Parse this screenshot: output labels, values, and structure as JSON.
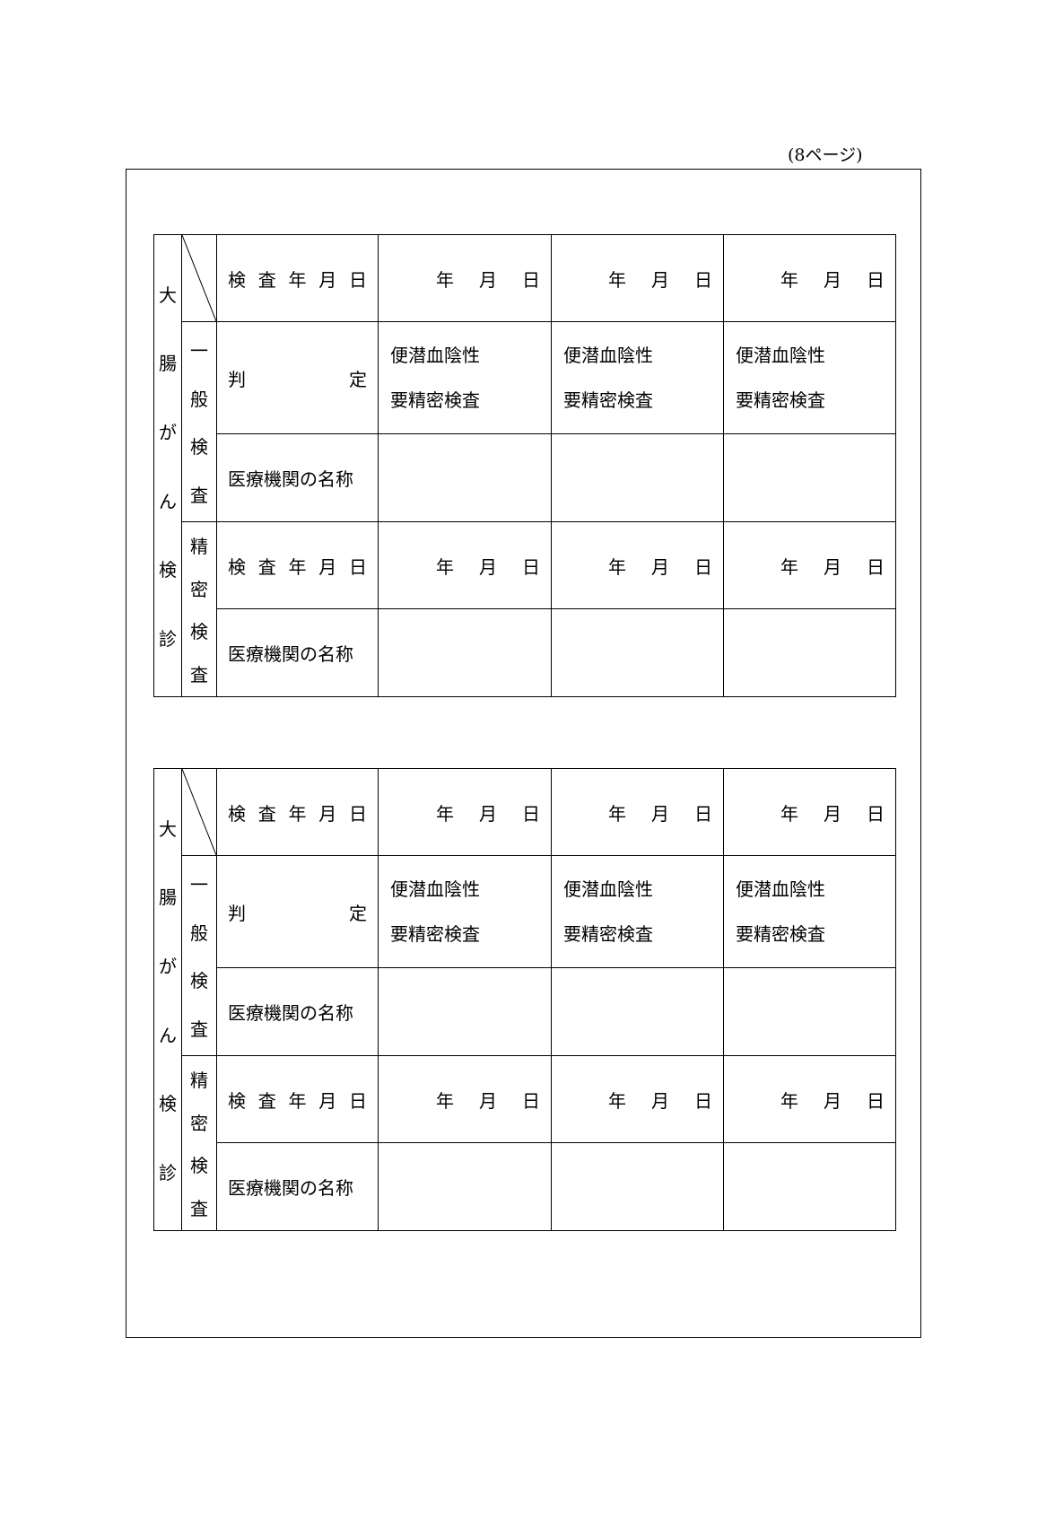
{
  "page_label": "(8ページ)",
  "tables": [
    {
      "side_label": [
        "大",
        "腸",
        "が",
        "ん",
        "検",
        "診"
      ],
      "general_label": [
        "一",
        "般",
        "検",
        "査"
      ],
      "detail_label": [
        "精",
        "密",
        "検",
        "査"
      ],
      "exam_date_label": [
        "検",
        "査",
        "年",
        "月",
        "日"
      ],
      "judgement_label": [
        "判",
        "定"
      ],
      "institution_label": "医療機関の名称",
      "date_parts": [
        "年",
        "月",
        "日"
      ],
      "judgement_options": [
        "便潜血陰性",
        "要精密検査"
      ]
    },
    {
      "side_label": [
        "大",
        "腸",
        "が",
        "ん",
        "検",
        "診"
      ],
      "general_label": [
        "一",
        "般",
        "検",
        "査"
      ],
      "detail_label": [
        "精",
        "密",
        "検",
        "査"
      ],
      "exam_date_label": [
        "検",
        "査",
        "年",
        "月",
        "日"
      ],
      "judgement_label": [
        "判",
        "定"
      ],
      "institution_label": "医療機関の名称",
      "date_parts": [
        "年",
        "月",
        "日"
      ],
      "judgement_options": [
        "便潜血陰性",
        "要精密検査"
      ]
    }
  ]
}
